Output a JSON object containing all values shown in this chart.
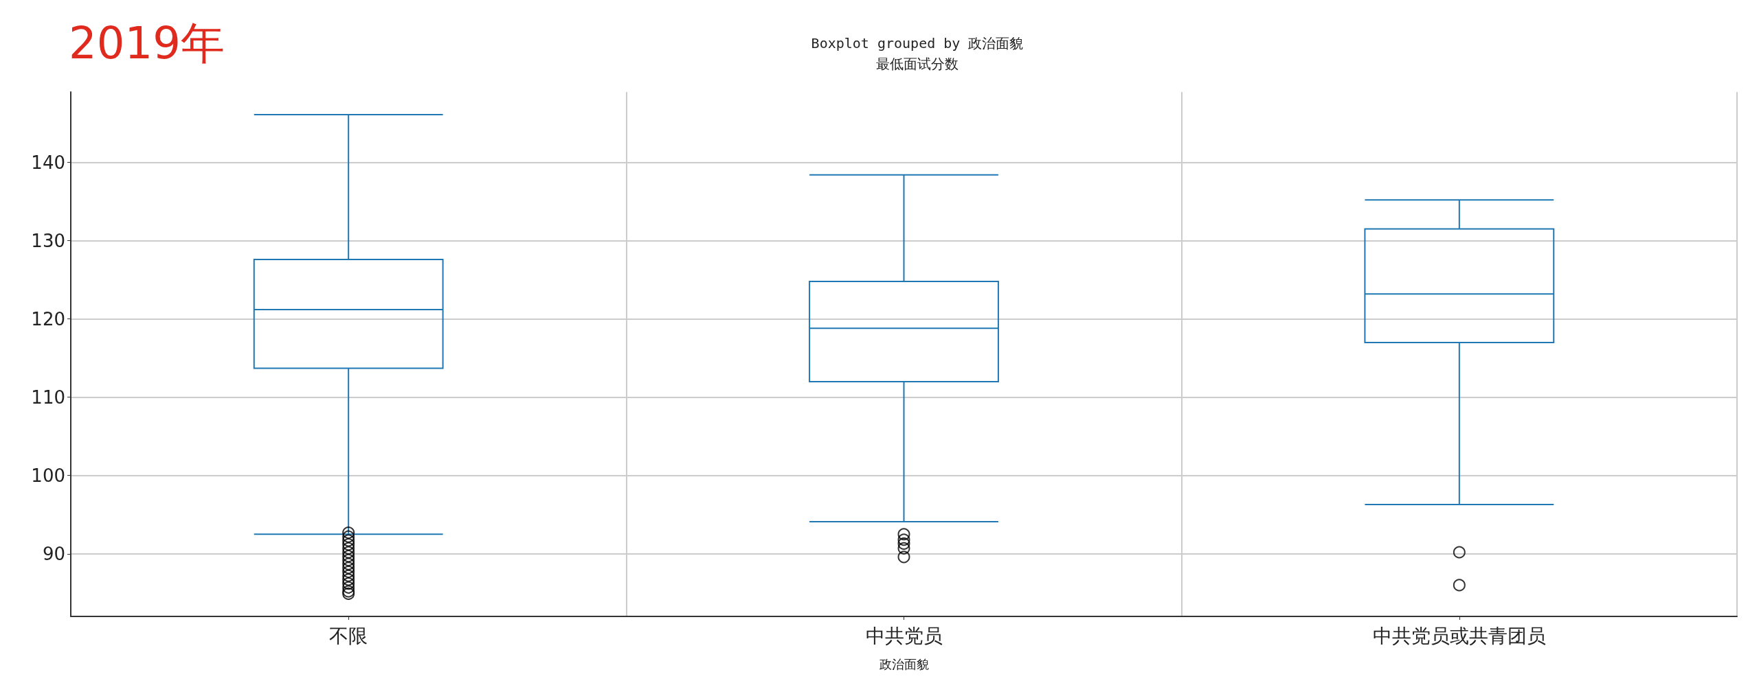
{
  "chart_data": {
    "type": "box",
    "title": "Boxplot grouped by 政治面貌",
    "subtitle": "最低面试分数",
    "xlabel": "政治面貌",
    "annotations": [
      "2019年"
    ],
    "categories": [
      "不限",
      "中共党员",
      "中共党员或共青团员"
    ],
    "series": [
      {
        "color": "#1f77b4",
        "boxes": [
          {
            "low": 92.5,
            "q1": 113.7,
            "median": 121.2,
            "q3": 127.6,
            "high": 146.1,
            "outliers": [
              92.7,
              92.2,
              91.7,
              91.2,
              90.7,
              90.2,
              89.7,
              89.2,
              88.7,
              88.2,
              87.7,
              87.2,
              86.7,
              86.2,
              85.7,
              85.2,
              84.9
            ]
          },
          {
            "low": 94.1,
            "q1": 112.0,
            "median": 118.8,
            "q3": 124.8,
            "high": 138.4,
            "outliers": [
              92.5,
              91.8,
              91.3,
              90.7,
              89.6
            ]
          },
          {
            "low": 96.3,
            "q1": 117.0,
            "median": 123.2,
            "q3": 131.5,
            "high": 135.2,
            "outliers": [
              90.2,
              86.0
            ]
          }
        ]
      }
    ],
    "ylim": [
      82,
      149
    ],
    "yticks": [
      90,
      100,
      110,
      120,
      130,
      140
    ],
    "grid": true,
    "marker": "circle"
  }
}
